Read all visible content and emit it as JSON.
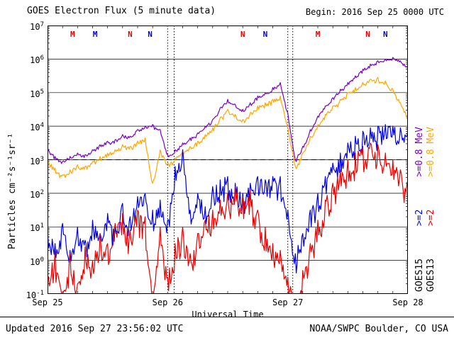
{
  "header": {
    "title": "GOES Electron Flux (5 minute data)",
    "begin_label": "Begin: 2016 Sep 25 0000 UTC"
  },
  "footer": {
    "updated": "Updated 2016 Sep 27 23:56:02 UTC",
    "credit": "NOAA/SWPC Boulder, CO USA"
  },
  "colors": {
    "black": "#000000",
    "purple": "#7a00c8",
    "orange": "#ffa600",
    "blue": "#0000e6",
    "red": "#e60000"
  },
  "right_legend": {
    "columns": [
      {
        "name": "GOES15",
        "segments": [
          {
            "text": "GOES15",
            "color": "black"
          },
          {
            "text": ">=2",
            "color": "blue"
          },
          {
            "text": ">=0.8 MeV",
            "color": "purple"
          }
        ]
      },
      {
        "name": "GOES13",
        "segments": [
          {
            "text": "GOES13",
            "color": "black"
          },
          {
            "text": ">=2",
            "color": "red"
          },
          {
            "text": ">=0.8 MeV",
            "color": "orange"
          }
        ]
      }
    ]
  },
  "chart_data": {
    "type": "line",
    "title": "GOES Electron Flux (5 minute data)",
    "xlabel": "Universal Time",
    "ylabel": "Particles cm⁻²s⁻¹sr⁻¹",
    "y_scale": "log",
    "y_tick_base": "10",
    "y_tick_exponents": [
      7,
      6,
      5,
      4,
      3,
      2,
      1,
      0,
      -1
    ],
    "ylim_log10": [
      -1,
      7
    ],
    "x_range_hours": [
      0,
      72
    ],
    "x_ticks": [
      "Sep 25",
      "Sep 26",
      "Sep 27",
      "Sep 28"
    ],
    "x_tick_hours": [
      0,
      24,
      48,
      72
    ],
    "threshold_log10": 3,
    "dotted_vlines_hours": [
      24,
      25.3,
      48,
      49
    ],
    "hours_step": 1.5,
    "series": [
      {
        "name": "GOES15 >=0.8 MeV",
        "color": "purple",
        "noise_log10": 0.07,
        "values_log10": [
          3.35,
          3.1,
          2.95,
          3.1,
          3.2,
          3.15,
          3.3,
          3.45,
          3.55,
          3.6,
          3.75,
          3.7,
          3.9,
          4.0,
          4.05,
          3.9,
          3.15,
          3.3,
          3.5,
          3.65,
          3.8,
          4.0,
          4.2,
          4.55,
          4.8,
          4.65,
          4.5,
          4.7,
          4.9,
          5.0,
          5.15,
          5.3,
          4.4,
          3.0,
          3.4,
          3.9,
          4.3,
          4.6,
          4.85,
          5.1,
          5.3,
          5.5,
          5.7,
          5.85,
          5.95,
          6.0,
          6.05,
          5.95,
          5.8
        ]
      },
      {
        "name": "GOES13 >=0.8 MeV",
        "color": "orange",
        "noise_log10": 0.1,
        "values_log10": [
          3.0,
          2.75,
          2.55,
          2.7,
          2.85,
          2.8,
          2.95,
          3.1,
          3.2,
          3.3,
          3.45,
          3.4,
          3.55,
          3.65,
          2.3,
          3.3,
          2.9,
          3.05,
          3.25,
          3.4,
          3.55,
          3.75,
          3.95,
          4.25,
          4.5,
          4.35,
          4.2,
          4.4,
          4.6,
          4.7,
          4.8,
          4.9,
          4.0,
          2.8,
          3.2,
          3.7,
          4.05,
          4.35,
          4.6,
          4.8,
          5.0,
          5.15,
          5.3,
          5.4,
          5.45,
          5.35,
          5.1,
          4.7,
          4.3
        ]
      },
      {
        "name": "GOES15 >=2 MeV",
        "color": "blue",
        "noise_log10": 0.45,
        "values_log10": [
          1.0,
          0.5,
          1.1,
          0.3,
          1.0,
          0.6,
          1.2,
          0.8,
          1.4,
          1.0,
          1.7,
          1.3,
          1.9,
          2.0,
          1.5,
          1.8,
          1.2,
          2.8,
          3.3,
          1.5,
          2.0,
          1.6,
          2.2,
          2.4,
          2.5,
          2.3,
          2.0,
          2.3,
          2.5,
          2.4,
          2.5,
          2.5,
          1.5,
          0.2,
          0.8,
          1.5,
          2.0,
          2.5,
          2.9,
          3.2,
          3.5,
          3.7,
          3.85,
          3.95,
          4.0,
          4.05,
          4.0,
          3.95,
          3.9
        ]
      },
      {
        "name": "GOES13 >=2 MeV",
        "color": "red",
        "noise_log10": 0.55,
        "values_log10": [
          -0.5,
          0.3,
          -1.0,
          0.2,
          -0.7,
          0.4,
          0.0,
          0.8,
          0.5,
          1.1,
          1.4,
          0.9,
          1.5,
          1.3,
          -1.0,
          1.0,
          -0.5,
          0.5,
          1.0,
          0.2,
          0.8,
          1.2,
          1.5,
          1.8,
          2.0,
          2.2,
          1.9,
          2.1,
          1.5,
          1.0,
          0.5,
          0.3,
          -0.5,
          -1.0,
          -0.3,
          0.5,
          1.2,
          1.8,
          2.3,
          2.7,
          3.0,
          3.2,
          3.4,
          3.5,
          3.45,
          3.2,
          3.0,
          2.7,
          2.4
        ]
      }
    ],
    "event_markers": [
      {
        "hour": 5,
        "letter": "M",
        "color": "red"
      },
      {
        "hour": 9.5,
        "letter": "M",
        "color": "blue"
      },
      {
        "hour": 16.5,
        "letter": "N",
        "color": "red"
      },
      {
        "hour": 20.5,
        "letter": "N",
        "color": "blue"
      },
      {
        "hour": 39,
        "letter": "N",
        "color": "red"
      },
      {
        "hour": 43.5,
        "letter": "N",
        "color": "blue"
      },
      {
        "hour": 54,
        "letter": "M",
        "color": "red"
      },
      {
        "hour": 64,
        "letter": "N",
        "color": "red"
      },
      {
        "hour": 67.5,
        "letter": "N",
        "color": "blue"
      }
    ]
  }
}
